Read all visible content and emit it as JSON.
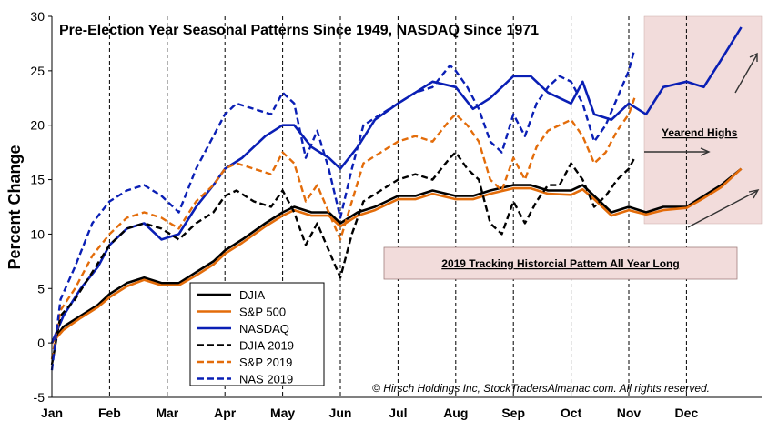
{
  "chart_data": {
    "type": "line",
    "title": "Pre-Election Year Seasonal Patterns Since 1949, NASDAQ Since 1971",
    "ylabel": "Percent Change",
    "xlabel": "",
    "ylim": [
      -5,
      30
    ],
    "yticks": [
      -5,
      0,
      5,
      10,
      15,
      20,
      25,
      30
    ],
    "categories": [
      "Jan",
      "Feb",
      "Mar",
      "Apr",
      "May",
      "Jun",
      "Jul",
      "Aug",
      "Sep",
      "Oct",
      "Nov",
      "Dec"
    ],
    "legend_position": "bottom-left",
    "grid": "vertical dashed month lines",
    "series": [
      {
        "name": "DJIA",
        "color": "#000000",
        "style": "solid",
        "x": [
          0,
          0.2,
          0.5,
          0.8,
          1,
          1.3,
          1.6,
          1.9,
          2.2,
          2.5,
          2.8,
          3,
          3.3,
          3.7,
          4,
          4.2,
          4.5,
          4.8,
          5,
          5.3,
          5.6,
          6,
          6.3,
          6.6,
          7,
          7.3,
          7.6,
          8,
          8.3,
          8.6,
          9,
          9.2,
          9.4,
          9.7,
          10,
          10.3,
          10.6,
          11,
          11.3,
          11.6,
          11.95
        ],
        "values": [
          0,
          1.5,
          2.5,
          3.5,
          4.5,
          5.5,
          6,
          5.5,
          5.5,
          6.5,
          7.5,
          8.5,
          9.5,
          11,
          12,
          12.5,
          12,
          12,
          11,
          12,
          12.5,
          13.5,
          13.5,
          14,
          13.5,
          13.5,
          14,
          14.5,
          14.5,
          14,
          14,
          14.5,
          13.5,
          12,
          12.5,
          12,
          12.5,
          12.5,
          13.5,
          14.5,
          16
        ]
      },
      {
        "name": "S&P 500",
        "color": "#e36c0a",
        "style": "solid",
        "x": [
          0,
          0.2,
          0.5,
          0.8,
          1,
          1.3,
          1.6,
          1.9,
          2.2,
          2.5,
          2.8,
          3,
          3.3,
          3.7,
          4,
          4.2,
          4.5,
          4.8,
          5,
          5.3,
          5.6,
          6,
          6.3,
          6.6,
          7,
          7.3,
          7.6,
          8,
          8.3,
          8.6,
          9,
          9.2,
          9.4,
          9.7,
          10,
          10.3,
          10.6,
          11,
          11.3,
          11.6,
          11.95
        ],
        "values": [
          0,
          1.2,
          2.3,
          3.3,
          4.2,
          5.2,
          5.8,
          5.3,
          5.3,
          6.2,
          7.2,
          8.2,
          9.2,
          10.7,
          11.7,
          12.2,
          11.7,
          11.7,
          10.7,
          11.7,
          12.2,
          13.2,
          13.2,
          13.7,
          13.2,
          13.2,
          13.7,
          14.2,
          14.2,
          13.7,
          13.6,
          14.1,
          13.2,
          11.7,
          12.2,
          11.8,
          12.2,
          12.4,
          13.3,
          14.3,
          16
        ]
      },
      {
        "name": "NASDAQ",
        "color": "#0a1fb5",
        "style": "solid",
        "x": [
          0,
          0.2,
          0.5,
          0.8,
          1,
          1.3,
          1.6,
          1.9,
          2.2,
          2.5,
          2.8,
          3,
          3.3,
          3.7,
          4,
          4.2,
          4.5,
          4.8,
          5,
          5.3,
          5.6,
          6,
          6.3,
          6.6,
          7,
          7.3,
          7.6,
          8,
          8.3,
          8.6,
          9,
          9.2,
          9.4,
          9.7,
          10,
          10.3,
          10.6,
          11,
          11.3,
          11.6,
          11.95
        ],
        "values": [
          0,
          2.5,
          5,
          7,
          9,
          10.5,
          11,
          9.5,
          10,
          12.5,
          14.5,
          16,
          17,
          19,
          20,
          20,
          18,
          17,
          16,
          18,
          20.5,
          22,
          23,
          24,
          23.5,
          21.5,
          22.5,
          24.5,
          24.5,
          23,
          22,
          24,
          21,
          20.5,
          22,
          21,
          23.5,
          24,
          23.5,
          26,
          29
        ]
      },
      {
        "name": "DJIA 2019",
        "color": "#000000",
        "style": "dashed",
        "x": [
          0,
          0.15,
          0.4,
          0.7,
          1,
          1.3,
          1.6,
          1.9,
          2.2,
          2.5,
          2.8,
          3,
          3.2,
          3.5,
          3.8,
          4,
          4.2,
          4.4,
          4.6,
          4.8,
          5,
          5.2,
          5.4,
          5.7,
          6,
          6.3,
          6.6,
          6.9,
          7,
          7.2,
          7.4,
          7.6,
          7.8,
          8,
          8.2,
          8.4,
          8.6,
          8.8,
          9,
          9.2,
          9.4,
          9.6,
          9.8,
          10,
          10.1
        ],
        "values": [
          -2,
          2.5,
          4,
          6.5,
          9,
          10.5,
          11,
          10.5,
          9.5,
          11,
          12,
          13.5,
          14,
          13,
          12.5,
          14,
          12,
          9,
          11,
          8.5,
          6,
          10,
          13,
          14,
          15,
          15.5,
          15,
          17,
          17.5,
          16,
          15,
          11,
          10,
          13,
          11,
          13,
          14.5,
          14.5,
          16.5,
          15,
          12.5,
          13.5,
          15,
          16,
          17
        ]
      },
      {
        "name": "S&P 2019",
        "color": "#e36c0a",
        "style": "dashed",
        "x": [
          0,
          0.15,
          0.4,
          0.7,
          1,
          1.3,
          1.6,
          1.9,
          2.2,
          2.5,
          2.8,
          3,
          3.2,
          3.5,
          3.8,
          4,
          4.2,
          4.4,
          4.6,
          4.8,
          5,
          5.2,
          5.4,
          5.7,
          6,
          6.3,
          6.6,
          6.9,
          7,
          7.2,
          7.4,
          7.6,
          7.8,
          8,
          8.2,
          8.4,
          8.6,
          8.8,
          9,
          9.2,
          9.4,
          9.6,
          9.8,
          10,
          10.1
        ],
        "values": [
          -1.5,
          3,
          5,
          8,
          10,
          11.5,
          12,
          11.5,
          10.5,
          13,
          14.5,
          16,
          16.5,
          16,
          15.5,
          17.5,
          16.5,
          13,
          14.5,
          12,
          9.5,
          13,
          16.5,
          17.5,
          18.5,
          19,
          18.5,
          20.5,
          21,
          20,
          18.5,
          15,
          14,
          17,
          15,
          18,
          19.5,
          20,
          20.5,
          19,
          16.5,
          17.5,
          19.5,
          21,
          22.5
        ]
      },
      {
        "name": "NAS 2019",
        "color": "#0a1fb5",
        "style": "dashed",
        "x": [
          0,
          0.15,
          0.4,
          0.7,
          1,
          1.3,
          1.6,
          1.9,
          2.2,
          2.5,
          2.8,
          3,
          3.2,
          3.5,
          3.8,
          4,
          4.2,
          4.4,
          4.6,
          4.8,
          5,
          5.2,
          5.4,
          5.7,
          6,
          6.3,
          6.6,
          6.9,
          7,
          7.2,
          7.4,
          7.6,
          7.8,
          8,
          8.2,
          8.4,
          8.6,
          8.8,
          9,
          9.2,
          9.4,
          9.6,
          9.8,
          10,
          10.1
        ],
        "values": [
          -2.5,
          4,
          7,
          11,
          13,
          14,
          14.5,
          13.5,
          12,
          16,
          19,
          21,
          22,
          21.5,
          21,
          23,
          22,
          17,
          19.5,
          16,
          11.5,
          16,
          20,
          21,
          22,
          23,
          23.5,
          25.5,
          25,
          23.5,
          21.5,
          18.5,
          17.5,
          21,
          19,
          22,
          23.5,
          24.5,
          24,
          22,
          18.5,
          20,
          22.5,
          25,
          27
        ]
      }
    ],
    "annotations": {
      "yearend_highs": "Yearend Highs",
      "tracking_box": "2019 Tracking Historcial Pattern All Year Long",
      "copyright": "© Hirsch Holdings Inc, StockTradersAlmanac.com. All rights reserved."
    },
    "colors": {
      "highlight_band": "#f2dcdb",
      "tracking_box_fill": "#f2dcdb",
      "djia": "#000000",
      "sp500": "#e36c0a",
      "nasdaq": "#0a1fb5"
    }
  }
}
